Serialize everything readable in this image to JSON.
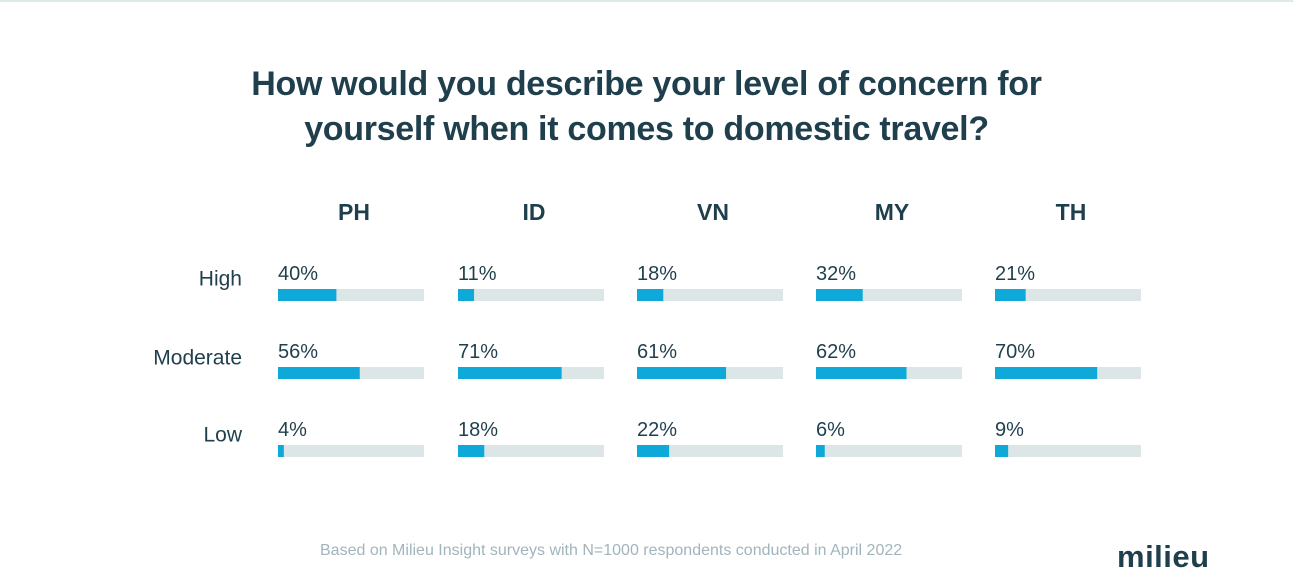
{
  "title_lines": [
    "How would you describe your level of concern for",
    "yourself when it comes to domestic travel?"
  ],
  "footnote": "Based on Milieu Insight surveys with N=1000 respondents conducted in April 2022",
  "logo": "milieu",
  "colors": {
    "bar": "#0fa9d9",
    "track": "#dce6e6",
    "text": "#1f3f4d",
    "footnote": "#a2b4bc"
  },
  "chart_data": {
    "type": "bar",
    "title": "How would you describe your level of concern for yourself when it comes to domestic travel?",
    "categories": [
      "High",
      "Moderate",
      "Low"
    ],
    "series": [
      {
        "name": "PH",
        "values": [
          40,
          56,
          4
        ]
      },
      {
        "name": "ID",
        "values": [
          11,
          71,
          18
        ]
      },
      {
        "name": "VN",
        "values": [
          18,
          61,
          22
        ]
      },
      {
        "name": "MY",
        "values": [
          32,
          62,
          6
        ]
      },
      {
        "name": "TH",
        "values": [
          21,
          70,
          9
        ]
      }
    ],
    "value_suffix": "%",
    "ylim": [
      0,
      100
    ]
  }
}
